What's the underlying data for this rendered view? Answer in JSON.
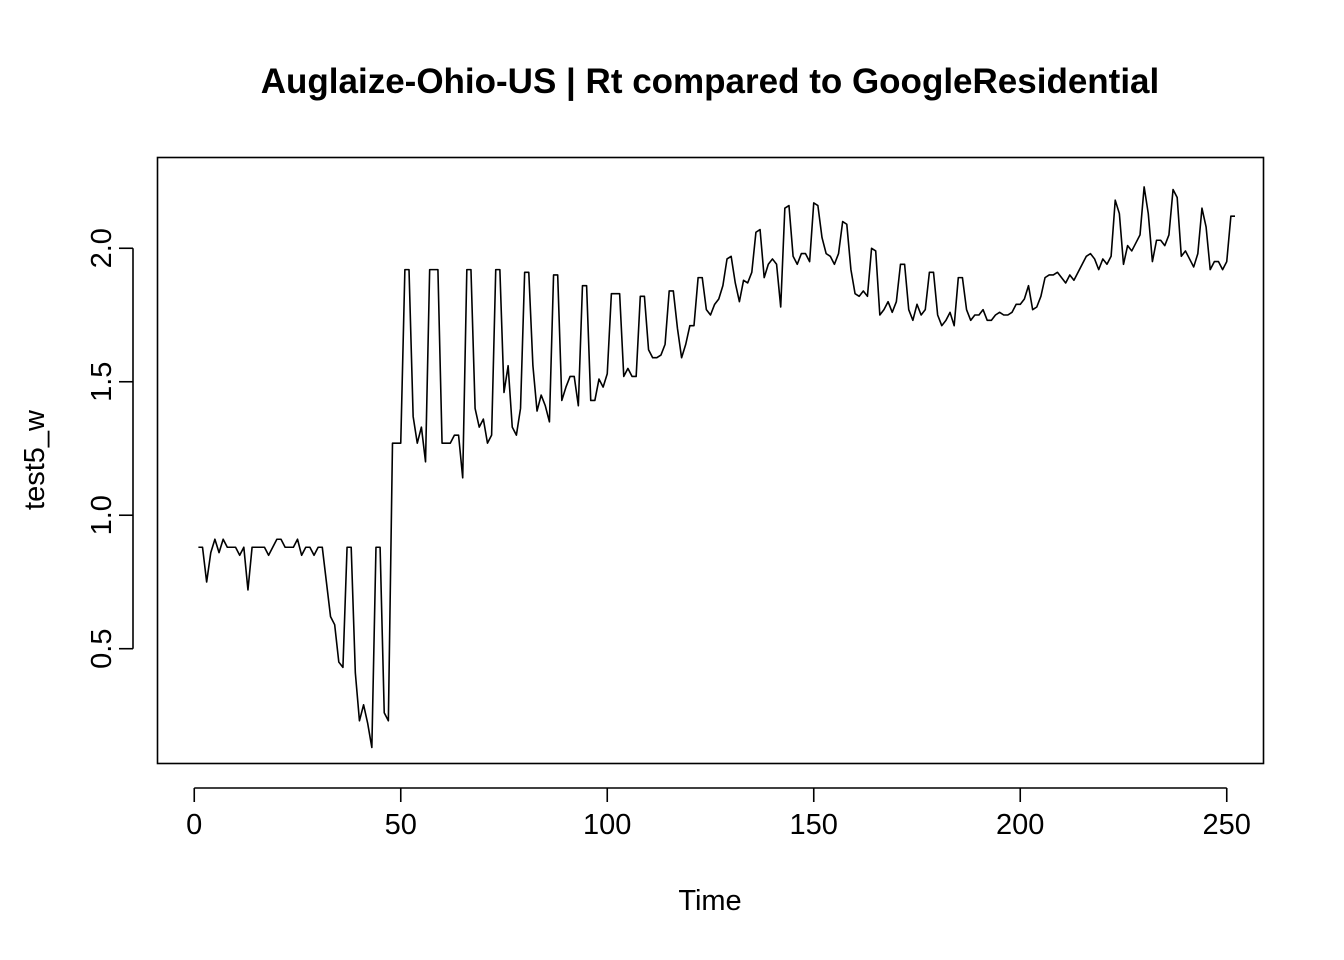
{
  "chart_data": {
    "type": "line",
    "title": "Auglaize-Ohio-US | Rt compared to GoogleResidential",
    "xlabel": "Time",
    "ylabel": "test5_w",
    "xlim": [
      -8.9,
      258.9
    ],
    "ylim": [
      0.07,
      2.34
    ],
    "x_ticks": [
      0,
      50,
      100,
      150,
      200,
      250
    ],
    "y_ticks": [
      0.5,
      1.0,
      1.5,
      2.0
    ],
    "x_tick_labels": [
      "0",
      "50",
      "100",
      "150",
      "200",
      "250"
    ],
    "y_tick_labels": [
      "0.5",
      "1.0",
      "1.5",
      "2.0"
    ],
    "grid": false,
    "line_color": "#000000",
    "series": [
      {
        "x_start": 1,
        "values": [
          0.88,
          0.88,
          0.75,
          0.86,
          0.91,
          0.86,
          0.91,
          0.88,
          0.88,
          0.88,
          0.85,
          0.88,
          0.72,
          0.88,
          0.88,
          0.88,
          0.88,
          0.85,
          0.88,
          0.91,
          0.91,
          0.88,
          0.88,
          0.88,
          0.91,
          0.85,
          0.88,
          0.88,
          0.85,
          0.88,
          0.88,
          0.75,
          0.62,
          0.59,
          0.45,
          0.43,
          0.88,
          0.88,
          0.41,
          0.23,
          0.29,
          0.22,
          0.13,
          0.88,
          0.88,
          0.26,
          0.23,
          1.27,
          1.27,
          1.27,
          1.92,
          1.92,
          1.37,
          1.27,
          1.33,
          1.2,
          1.92,
          1.92,
          1.92,
          1.27,
          1.27,
          1.27,
          1.3,
          1.3,
          1.14,
          1.92,
          1.92,
          1.4,
          1.33,
          1.36,
          1.27,
          1.3,
          1.92,
          1.92,
          1.46,
          1.56,
          1.33,
          1.3,
          1.4,
          1.91,
          1.91,
          1.56,
          1.39,
          1.45,
          1.41,
          1.35,
          1.9,
          1.9,
          1.43,
          1.48,
          1.52,
          1.52,
          1.41,
          1.86,
          1.86,
          1.43,
          1.43,
          1.51,
          1.48,
          1.53,
          1.83,
          1.83,
          1.83,
          1.52,
          1.55,
          1.52,
          1.52,
          1.82,
          1.82,
          1.62,
          1.59,
          1.59,
          1.6,
          1.64,
          1.84,
          1.84,
          1.7,
          1.59,
          1.64,
          1.71,
          1.71,
          1.89,
          1.89,
          1.77,
          1.75,
          1.79,
          1.81,
          1.86,
          1.96,
          1.97,
          1.87,
          1.8,
          1.88,
          1.87,
          1.91,
          2.06,
          2.07,
          1.89,
          1.94,
          1.96,
          1.94,
          1.78,
          2.15,
          2.16,
          1.97,
          1.94,
          1.98,
          1.98,
          1.95,
          2.17,
          2.16,
          2.04,
          1.98,
          1.97,
          1.94,
          1.98,
          2.1,
          2.09,
          1.92,
          1.83,
          1.82,
          1.84,
          1.82,
          2.0,
          1.99,
          1.75,
          1.77,
          1.8,
          1.76,
          1.8,
          1.94,
          1.94,
          1.77,
          1.73,
          1.79,
          1.75,
          1.77,
          1.91,
          1.91,
          1.75,
          1.71,
          1.73,
          1.76,
          1.71,
          1.89,
          1.89,
          1.77,
          1.73,
          1.75,
          1.75,
          1.77,
          1.73,
          1.73,
          1.75,
          1.76,
          1.75,
          1.75,
          1.76,
          1.79,
          1.79,
          1.81,
          1.86,
          1.77,
          1.78,
          1.82,
          1.89,
          1.9,
          1.9,
          1.91,
          1.89,
          1.87,
          1.9,
          1.88,
          1.91,
          1.94,
          1.97,
          1.98,
          1.96,
          1.92,
          1.96,
          1.94,
          1.97,
          2.18,
          2.13,
          1.94,
          2.01,
          1.99,
          2.02,
          2.05,
          2.23,
          2.13,
          1.95,
          2.03,
          2.03,
          2.01,
          2.05,
          2.22,
          2.19,
          1.97,
          1.99,
          1.96,
          1.93,
          1.98,
          2.15,
          2.08,
          1.92,
          1.95,
          1.95,
          1.92,
          1.95,
          2.12,
          2.12
        ]
      }
    ]
  }
}
